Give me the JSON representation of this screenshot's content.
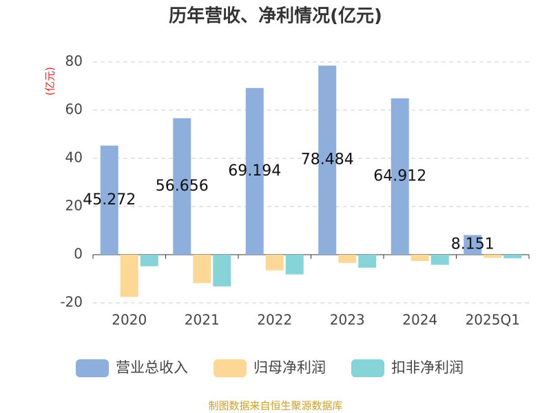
{
  "chart_data": {
    "type": "bar",
    "title": "历年营收、净利情况(亿元)",
    "y_label": "(亿元)",
    "categories": [
      "2020",
      "2021",
      "2022",
      "2023",
      "2024",
      "2025Q1"
    ],
    "series": [
      {
        "name": "营业总收入",
        "color": "#8eaedb",
        "values": [
          45.272,
          56.656,
          69.194,
          78.484,
          64.912,
          8.151
        ]
      },
      {
        "name": "归母净利润",
        "color": "#fdd795",
        "values": [
          -17.5,
          -11.8,
          -6.5,
          -3.4,
          -2.6,
          -1.3
        ]
      },
      {
        "name": "扣非净利润",
        "color": "#86d4d8",
        "values": [
          -4.8,
          -13.2,
          -8.2,
          -5.4,
          -4.2,
          -1.5
        ]
      }
    ],
    "ylim": [
      -20,
      80
    ],
    "yticks": [
      -20,
      0,
      20,
      40,
      60,
      80
    ],
    "grid": true,
    "footer": "制图数据来自恒生聚源数据库"
  }
}
